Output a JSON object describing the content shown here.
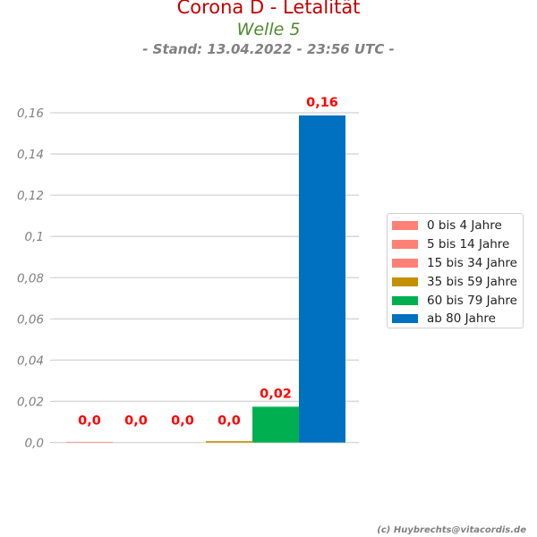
{
  "titles": {
    "main": "Corona D - Letalität",
    "sub": "Welle 5",
    "stand": "- Stand: 13.04.2022 - 23:56 UTC -"
  },
  "credit": "(c) Huybrechts@vitacordis.de",
  "chart_data": {
    "type": "bar",
    "title": "Corona D - Letalität",
    "subtitle": "Welle 5",
    "xlabel": "",
    "ylabel": "",
    "ylim": [
      0,
      0.16
    ],
    "yticks": [
      0.0,
      0.02,
      0.04,
      0.06,
      0.08,
      0.1,
      0.12,
      0.14,
      0.16
    ],
    "ytick_labels": [
      "0,0",
      "0,02",
      "0,04",
      "0,06",
      "0,08",
      "0,1",
      "0,12",
      "0,14",
      "0,16"
    ],
    "grid": true,
    "legend_position": "right",
    "categories": [
      "0 bis 4 Jahre",
      "5 bis 14 Jahre",
      "15 bis 34 Jahre",
      "35 bis 59 Jahre",
      "60 bis 79 Jahre",
      "ab 80 Jahre"
    ],
    "values": [
      0.0003,
      0.0,
      0.0,
      0.0007,
      0.0174,
      0.1587
    ],
    "data_labels": [
      "0,0",
      "0,0",
      "0,0",
      "0,0",
      "0,02",
      "0,16"
    ],
    "colors": [
      "#ff8077",
      "#ff8077",
      "#ff8077",
      "#c49000",
      "#00b050",
      "#0070c0"
    ],
    "label_color": "#ff0000"
  }
}
